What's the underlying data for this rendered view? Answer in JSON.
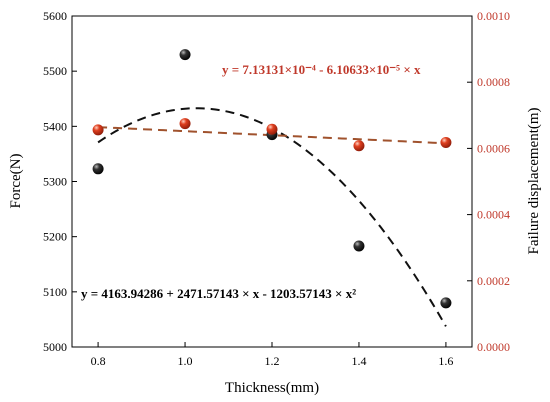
{
  "chart_data": {
    "type": "scatter",
    "xlabel": "Thickness(mm)",
    "ylabel_left": "Force(N)",
    "ylabel_right": "Failure displacement(m)",
    "x_ticks": [
      "0.8",
      "1.0",
      "1.2",
      "1.4",
      "1.6"
    ],
    "y_left_ticks": [
      "5000",
      "5100",
      "5200",
      "5300",
      "5400",
      "5500",
      "5600"
    ],
    "y_right_ticks": [
      "0.0000",
      "0.0002",
      "0.0004",
      "0.0006",
      "0.0008",
      "0.0010"
    ],
    "xlim": [
      0.74,
      1.66
    ],
    "ylim_left": [
      5000,
      5600
    ],
    "ylim_right": [
      0,
      0.001
    ],
    "series": [
      {
        "axis": "left",
        "color": "#111111",
        "x": [
          0.8,
          1.0,
          1.2,
          1.4,
          1.6
        ],
        "y": [
          5323,
          5530,
          5385,
          5183,
          5080
        ]
      },
      {
        "axis": "right",
        "color": "#c0392b",
        "x": [
          0.8,
          1.0,
          1.2,
          1.4,
          1.6
        ],
        "y": [
          0.000656,
          0.000675,
          0.000658,
          0.000608,
          0.000618
        ]
      }
    ],
    "fits": [
      {
        "axis": "left",
        "color": "#111111",
        "coefficients": [
          4163.94286,
          2471.57143,
          -1203.57143
        ],
        "x_range": [
          0.8,
          1.6
        ],
        "equation": "y = 4163.94286 + 2471.57143 × x - 1203.57143 × x²"
      },
      {
        "axis": "right",
        "color": "#a0522d",
        "coefficients": [
          0.000713131,
          -6.10633e-05
        ],
        "x_range": [
          0.8,
          1.6
        ],
        "equation": "y = 7.13131×10⁻⁴ - 6.10633×10⁻⁵ × x"
      }
    ],
    "grid": false
  }
}
